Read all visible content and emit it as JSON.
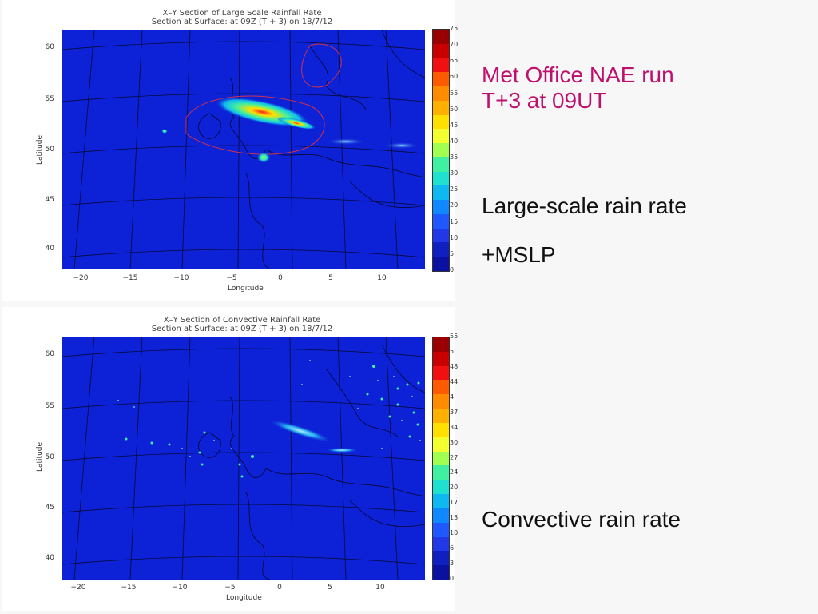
{
  "slide": {
    "heading_line1": "Met Office NAE run",
    "heading_line2": "T+3 at 09UT",
    "heading_color": "#c0106e",
    "caption_large_scale": "Large-scale rain rate",
    "caption_mslp": "+MSLP",
    "caption_convective": "Convective rain rate"
  },
  "top_plot": {
    "title_line1": "X–Y Section of Large Scale Rainfall Rate",
    "title_line2": "Section at Surface:     at 09Z (T + 3) on 18/7/12",
    "xlabel": "Longitude",
    "ylabel": "Latitude",
    "y_ticks": [
      "60",
      "55",
      "50",
      "45",
      "40"
    ],
    "x_ticks": [
      "−20",
      "−15",
      "−10",
      "−5",
      "0",
      "5",
      "10"
    ],
    "colorbar_labels": [
      "75",
      "70",
      "65",
      "60",
      "55",
      "50",
      "45",
      "40",
      "35",
      "30",
      "25",
      "20",
      "15",
      "10",
      "5",
      "0"
    ]
  },
  "bottom_plot": {
    "title_line1": "X–Y Section of Convective Rainfall Rate",
    "title_line2": "Section at Surface:     at 09Z (T + 3) on 18/7/12",
    "xlabel": "Longitude",
    "ylabel": "Latitude",
    "y_ticks": [
      "60",
      "55",
      "50",
      "45",
      "40"
    ],
    "x_ticks": [
      "−20",
      "−15",
      "−10",
      "−5",
      "0",
      "5",
      "10"
    ],
    "colorbar_labels": [
      "55",
      "5",
      "48",
      "44",
      "4",
      "37",
      "34",
      "30",
      "27",
      "24",
      "20",
      "17",
      "13",
      "10",
      "6.",
      "3.",
      "0."
    ]
  },
  "colorbar_colors": [
    "#9a0000",
    "#c80000",
    "#f01010",
    "#ff5a00",
    "#ff8c00",
    "#ffb000",
    "#ffe000",
    "#f4ff30",
    "#a0ff50",
    "#40f0a0",
    "#20e0d0",
    "#10b8f0",
    "#1088ff",
    "#2058ff",
    "#2038e8",
    "#1020c0",
    "#0a10a0"
  ]
}
